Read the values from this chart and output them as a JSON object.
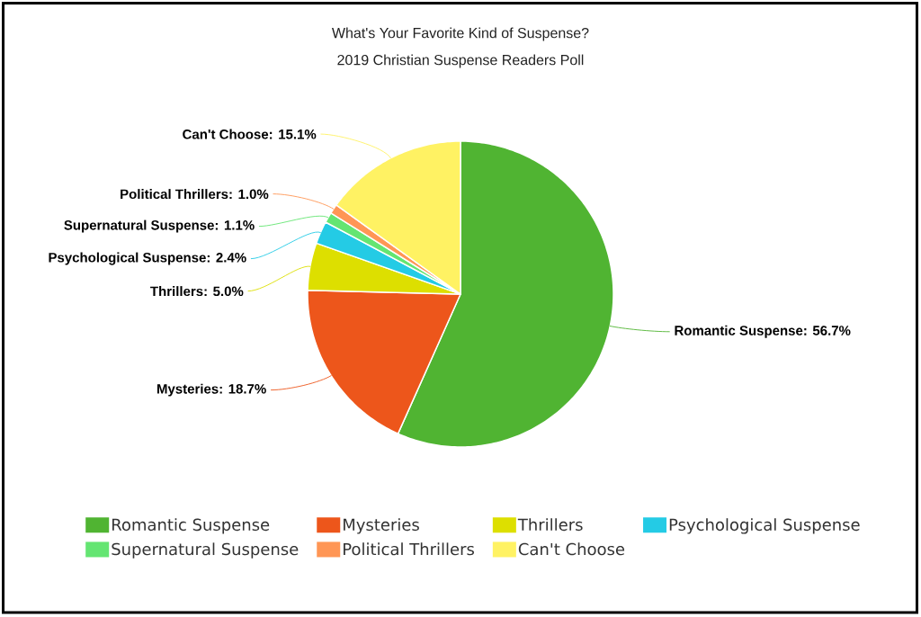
{
  "chart_data": {
    "type": "pie",
    "title": "What's Your Favorite Kind of Suspense?",
    "subtitle": "2019 Christian Suspense Readers Poll",
    "categories": [
      "Romantic Suspense",
      "Mysteries",
      "Thrillers",
      "Psychological Suspense",
      "Supernatural Suspense",
      "Political Thrillers",
      "Can't Choose"
    ],
    "values": [
      56.7,
      18.7,
      5.0,
      2.4,
      1.1,
      1.0,
      15.1
    ],
    "colors": [
      "#50b432",
      "#ed561b",
      "#dddf00",
      "#24cbe5",
      "#64e572",
      "#ff9655",
      "#fff263"
    ],
    "value_labels": [
      "Romantic Suspense: 56.7%",
      "Mysteries: 18.7%",
      "Thrillers: 5.0%",
      "Psychological Suspense: 2.4%",
      "Supernatural Suspense: 1.1%",
      "Political Thrillers: 1.0%",
      "Can't Choose: 15.1%"
    ],
    "legend": "bottom"
  }
}
